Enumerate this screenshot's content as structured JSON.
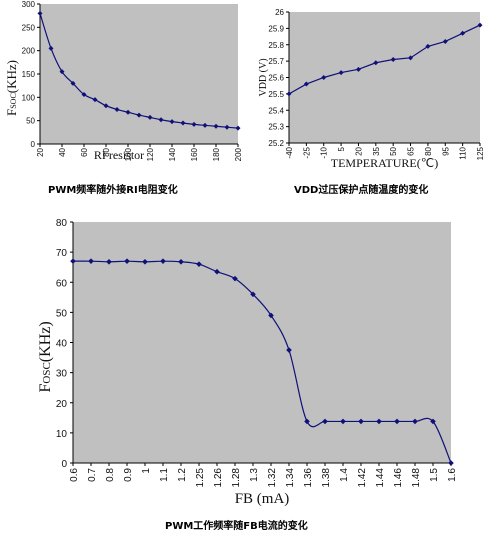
{
  "chart_data": [
    {
      "id": "chart1",
      "type": "line",
      "caption": "PWM频率随外接RI电阻变化",
      "xlabel": "RI resistor",
      "ylabel_main": "F",
      "ylabel_sub": "SOC",
      "ylabel_rest": "(KHz)",
      "xlim": [
        20,
        200
      ],
      "ylim": [
        0,
        300
      ],
      "xticks": [
        20,
        40,
        60,
        80,
        100,
        120,
        140,
        160,
        180,
        200
      ],
      "yticks": [
        0,
        50,
        100,
        150,
        200,
        250,
        300
      ],
      "grid": false,
      "background": "#c0c0c0",
      "line_color": "#10107a",
      "series": [
        {
          "x": [
            20,
            30,
            40,
            50,
            60,
            70,
            80,
            90,
            100,
            110,
            120,
            130,
            140,
            150,
            160,
            170,
            180,
            190,
            200
          ],
          "values": [
            280,
            205,
            155,
            130,
            106,
            95,
            82,
            74,
            68,
            62,
            57,
            52,
            48,
            45,
            42,
            40,
            38,
            36,
            34
          ]
        }
      ]
    },
    {
      "id": "chart2",
      "type": "line",
      "caption": "VDD过压保护点随温度的变化",
      "xlabel": "TEMPERATURE(℃)",
      "ylabel": "VDD (V)",
      "categories": [
        "-40",
        "-25",
        "-10",
        "5",
        "20",
        "35",
        "50",
        "65",
        "80",
        "95",
        "110",
        "125"
      ],
      "ylim": [
        25.2,
        26
      ],
      "yticks": [
        "25.2",
        "25.3",
        "25.4",
        "25.5",
        "25.6",
        "25.7",
        "25.8",
        "25.9",
        "26"
      ],
      "grid": false,
      "background": "#c0c0c0",
      "line_color": "#10107a",
      "series": [
        {
          "values": [
            25.5,
            25.56,
            25.6,
            25.63,
            25.65,
            25.69,
            25.71,
            25.72,
            25.79,
            25.82,
            25.87,
            25.92
          ]
        }
      ]
    },
    {
      "id": "chart3",
      "type": "line",
      "caption": "PWM工作频率随FB电流的变化",
      "xlabel": "FB (mA)",
      "ylabel_main": "F",
      "ylabel_sub": "OSC",
      "ylabel_rest": "(KHz)",
      "categories": [
        "0.6",
        "0.7",
        "0.8",
        "0.9",
        "1",
        "1.1",
        "1.2",
        "1.25",
        "1.26",
        "1.28",
        "1.3",
        "1.32",
        "1.34",
        "1.36",
        "1.38",
        "1.4",
        "1.42",
        "1.44",
        "1.46",
        "1.48",
        "1.5",
        "1.6"
      ],
      "ylim": [
        0,
        80
      ],
      "yticks": [
        0,
        10,
        20,
        30,
        40,
        50,
        60,
        70,
        80
      ],
      "grid": false,
      "background": "#c0c0c0",
      "line_color": "#10107a",
      "series": [
        {
          "values": [
            67,
            67,
            66.8,
            67,
            66.8,
            67,
            66.8,
            66,
            63.5,
            61.2,
            56,
            49,
            37.5,
            13.8,
            13.8,
            13.8,
            13.8,
            13.8,
            13.8,
            13.8,
            13.8,
            0
          ]
        }
      ]
    }
  ]
}
